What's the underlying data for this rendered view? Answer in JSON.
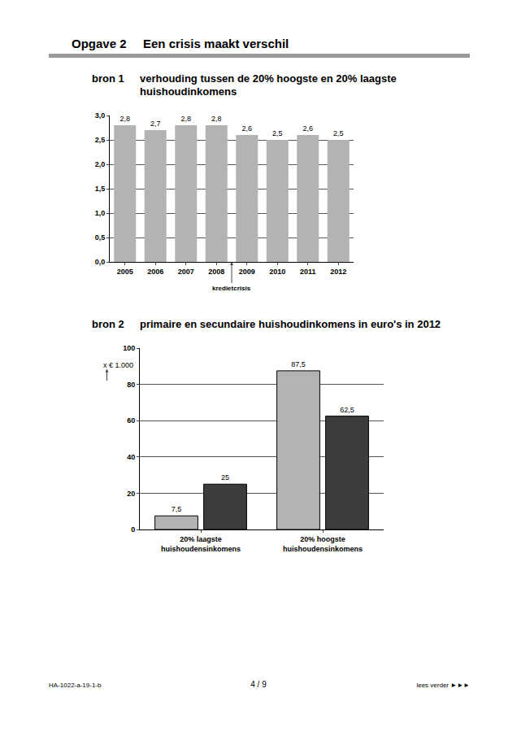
{
  "page": {
    "header": {
      "number": "Opgave 2",
      "title": "Een crisis maakt verschil"
    },
    "footer": {
      "code": "HA-1022-a-19-1-b",
      "page": "4 / 9",
      "next": "lees verder ►►►"
    }
  },
  "chart_data": [
    {
      "type": "bar",
      "source": "bron 1",
      "title": "verhouding tussen de 20% hoogste en 20% laagste\nhuishoudinkomens",
      "categories": [
        "2005",
        "2006",
        "2007",
        "2008",
        "2009",
        "2010",
        "2011",
        "2012"
      ],
      "values": [
        2.8,
        2.7,
        2.8,
        2.8,
        2.6,
        2.5,
        2.6,
        2.5
      ],
      "value_labels": [
        "2,8",
        "2,7",
        "2,8",
        "2,8",
        "2,6",
        "2,5",
        "2,6",
        "2,5"
      ],
      "data_labels": true,
      "color": "#b3b3b3",
      "ylim": [
        0,
        3
      ],
      "yticks": [
        {
          "value": 0,
          "label": "0,0"
        },
        {
          "value": 0.5,
          "label": "0,5"
        },
        {
          "value": 1,
          "label": "1,0"
        },
        {
          "value": 1.5,
          "label": "1,5"
        },
        {
          "value": 2,
          "label": "2,0"
        },
        {
          "value": 2.5,
          "label": "2,5"
        },
        {
          "value": 3,
          "label": "3,0"
        }
      ],
      "grid": true,
      "annotations": [
        {
          "text": "kredietcrisis",
          "after": "2008"
        }
      ]
    },
    {
      "type": "bar",
      "source": "bron 2",
      "title": "primaire en secundaire huishoudinkomens in euro's in 2012",
      "y_label": "x € 1.000",
      "categories": [
        "20% laagste\nhuishoudensinkomens",
        "20% hoogste\nhuishoudensinkomens"
      ],
      "series": [
        {
          "color": "#b3b3b3",
          "values": [
            7.5,
            87.5
          ],
          "value_labels": [
            "7,5",
            "87,5"
          ]
        },
        {
          "color": "#3c3c3c",
          "values": [
            25,
            62.5
          ],
          "value_labels": [
            "25",
            "62,5"
          ]
        }
      ],
      "data_labels": true,
      "ylim": [
        0,
        100
      ],
      "yticks": [
        0,
        20,
        40,
        60,
        80,
        100
      ],
      "grid": true
    }
  ]
}
